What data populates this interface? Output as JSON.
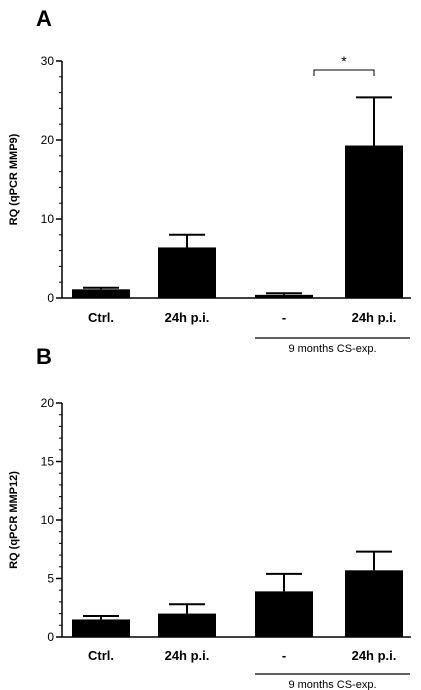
{
  "chart_data": [
    {
      "type": "bar",
      "panel": "A",
      "ylabel": "RQ (qPCR MMP9)",
      "ylim": [
        0,
        30
      ],
      "yticks": [
        0,
        10,
        20,
        30
      ],
      "categories": [
        "Ctrl.",
        "24h p.i.",
        "-",
        "24h p.i."
      ],
      "values": [
        1.1,
        6.4,
        0.4,
        19.3
      ],
      "errors": [
        0.2,
        1.6,
        0.2,
        6.1
      ],
      "group_label": "9 months CS-exp.",
      "group_span": [
        2,
        3
      ],
      "significance": {
        "between": [
          2,
          3
        ],
        "label": "*"
      },
      "bar_color": "#000000"
    },
    {
      "type": "bar",
      "panel": "B",
      "ylabel": "RQ (qPCR MMP12)",
      "ylim": [
        0,
        20
      ],
      "yticks": [
        0,
        5,
        10,
        15,
        20
      ],
      "categories": [
        "Ctrl.",
        "24h p.i.",
        "-",
        "24h p.i."
      ],
      "values": [
        1.5,
        2.0,
        3.9,
        5.7
      ],
      "errors": [
        0.3,
        0.8,
        1.5,
        1.6
      ],
      "group_label": "9 months CS-exp.",
      "group_span": [
        2,
        3
      ],
      "bar_color": "#000000"
    }
  ]
}
